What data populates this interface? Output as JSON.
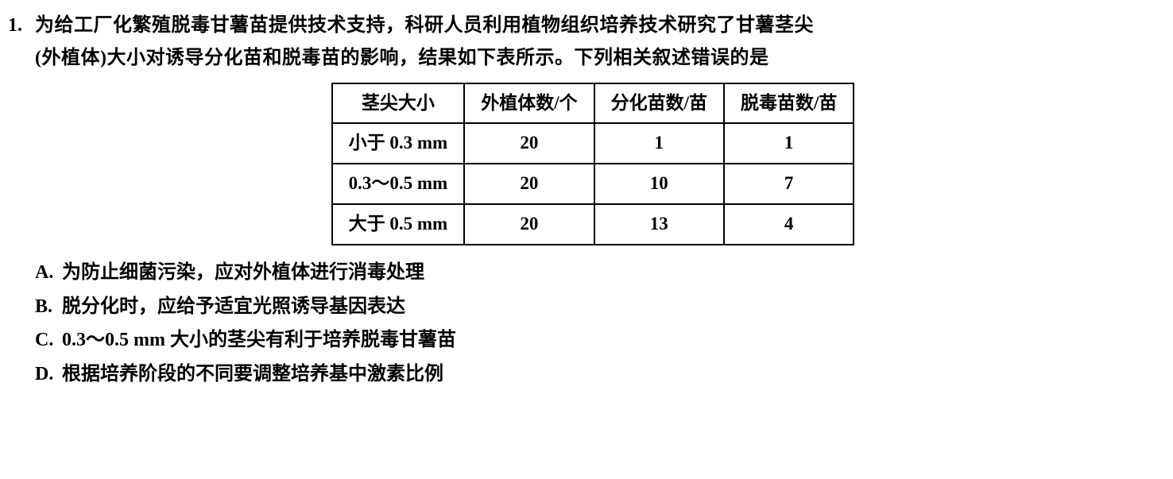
{
  "question": {
    "number": "1.",
    "stem_line1": "为给工厂化繁殖脱毒甘薯苗提供技术支持，科研人员利用植物组织培养技术研究了甘薯茎尖",
    "stem_line2": "(外植体)大小对诱导分化苗和脱毒苗的影响，结果如下表所示。下列相关叙述错误的是"
  },
  "table": {
    "headers": [
      "茎尖大小",
      "外植体数/个",
      "分化苗数/苗",
      "脱毒苗数/苗"
    ],
    "rows": [
      [
        "小于 0.3 mm",
        "20",
        "1",
        "1"
      ],
      [
        "0.3～0.5 mm",
        "20",
        "10",
        "7"
      ],
      [
        "大于 0.5 mm",
        "20",
        "13",
        "4"
      ]
    ],
    "border_color": "#000000",
    "cell_fontsize": 23
  },
  "options": {
    "A": {
      "label": "A.",
      "text": "为防止细菌污染，应对外植体进行消毒处理"
    },
    "B": {
      "label": "B.",
      "text": "脱分化时，应给予适宜光照诱导基因表达"
    },
    "C": {
      "label": "C.",
      "text": "0.3～0.5 mm 大小的茎尖有利于培养脱毒甘薯苗"
    },
    "D": {
      "label": "D.",
      "text": "根据培养阶段的不同要调整培养基中激素比例"
    }
  },
  "style": {
    "font_family": "SimSun/Songti",
    "font_size_pt": 18,
    "text_color": "#000000",
    "background": "#ffffff"
  }
}
